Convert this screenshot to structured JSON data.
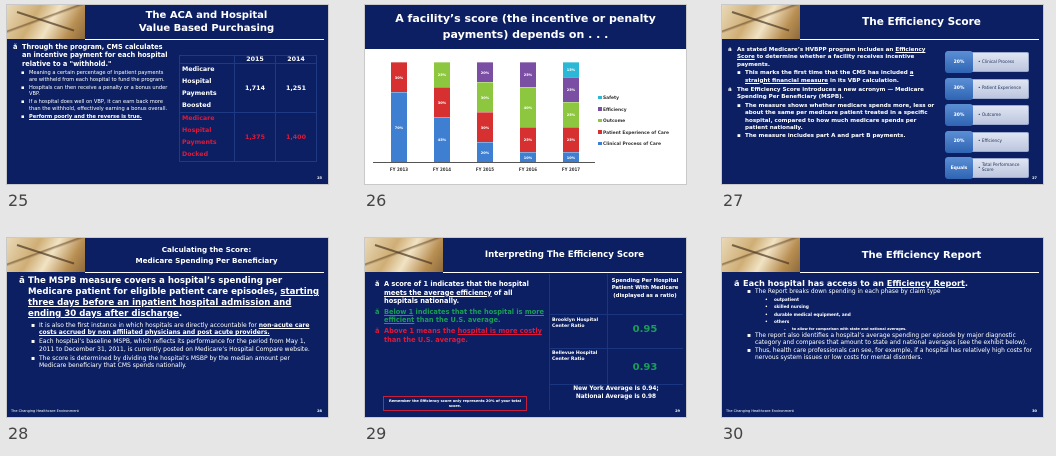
{
  "slides": [
    {
      "number": "25",
      "title_line1": "The ACA and Hospital",
      "title_line2": "Value Based Purchasing",
      "main_bullet": "Through the program, CMS calculates an incentive payment for each hospital relative to a \"withhold.\"",
      "sub_bullets": [
        "Meaning a certain percentage of inpatient payments are withheld from each hospital to fund the program.",
        "Hospitals can then receive a penalty or a bonus under VBP.",
        "If a hospital does well on VBP, it can earn back more than the withhold, effectively earning a bonus overall.",
        "Perform poorly and the reverse is true."
      ],
      "table": {
        "headers": [
          "",
          "2015",
          "2014"
        ],
        "rows": [
          {
            "label_lines": [
              "Medicare",
              "Hospital",
              "Payments",
              "Boosted"
            ],
            "values": [
              "1,714",
              "1,251"
            ],
            "color": "#ffffff"
          },
          {
            "label_lines": [
              "Medicare",
              "Hospital",
              "Payments",
              "Docked"
            ],
            "values": [
              "1,375",
              "1,400"
            ],
            "color": "#e31837"
          }
        ]
      },
      "slide_no": "25"
    },
    {
      "number": "26",
      "title": "A facility’s score (the incentive or penalty payments) depends on  . . .",
      "legend": [
        "Safety",
        "Efficiency",
        "Outcome",
        "Patient Experience of Care",
        "Clinical Process of Care"
      ]
    },
    {
      "number": "27",
      "title": "The Efficiency Score",
      "bullet1_pre": "As stated Medicare’s HVBPP program includes an ",
      "bullet1_link": "Efficiency Score",
      "bullet1_post": " to determine whether a facility receives incentive payments.",
      "bullet1_sub_pre": "This marks the first time that the CMS has included ",
      "bullet1_sub_link": "a straight financial measure",
      "bullet1_sub_post": " in its VBP calculation.",
      "bullet2": "The Efficiency Score introduces a new acronym — Medicare Spending Per Beneficiary (MSPB).",
      "bullet2_subs": [
        "The measure shows whether medicare spends more, less or about the same per medicare patient treated in a specific hospital, compared to how much medicare spends per patient nationally.",
        "The measure includes part A and part B payments."
      ],
      "boxes": [
        {
          "pct": "20%",
          "label": "Clinical Process"
        },
        {
          "pct": "30%",
          "label": "Patient Experience"
        },
        {
          "pct": "30%",
          "label": "Outcome"
        },
        {
          "pct": "20%",
          "label": "Efficiency"
        },
        {
          "pct": "Equals",
          "label": "Total Performance Score"
        }
      ],
      "slide_no": "27"
    },
    {
      "number": "28",
      "title_line1": "Calculating the Score:",
      "title_line2": "Medicare Spending Per Beneficiary",
      "main_pre": "The MSPB measure covers a hospital’s spending per Medicare patient for eligible patient care episodes, ",
      "main_link": "starting three days before an inpatient hospital admission and ending 30 days after discharge",
      "main_post": ".",
      "sub1_pre": "It is also the first instance in which hospitals are directly accountable for ",
      "sub1_link": "non-acute care costs accrued by non affiliated physicians and post acute providers.",
      "sub2": "Each hospital’s baseline MSPB, which reflects its performance for the period from May 1, 2011 to December 31, 2011, is currently posted on Medicare’s Hospital Compare website.",
      "sub3": "The score is determined by dividing the hospital’s MSBP by the median amount per Medicare beneficiary that CMS spends nationally.",
      "footer": "The Changing Healthcare Environment",
      "slide_no": "28"
    },
    {
      "number": "29",
      "title": "Interpreting The Efficiency Score",
      "b1_pre": "A score of 1 indicates that the hospital ",
      "b1_link": "meets the average efficiency",
      "b1_post": " of all hospitals nationally.",
      "b2_link1": "Below 1",
      "b2_mid": " indicates that the hospital is ",
      "b2_link2": "more efficient",
      "b2_post": " than the U.S. average.",
      "b3_pre": "Above 1 means the ",
      "b3_link": "hospital is more costly",
      "b3_post": " than the U.S. average.",
      "note": "Remember the Efficiency score only represents 20% of your total score.",
      "table_header": "Spending Per Hospital Patient With Medicare (displayed as a ratio)",
      "rows": [
        {
          "label": "Brooklyn Hospital Center Ratio",
          "value": "0.95"
        },
        {
          "label": "Bellevue Hospital Center Ratio",
          "value": "0.93"
        }
      ],
      "footer_line1": "New York Average is 0.94;",
      "footer_line2": "National Average is 0.98",
      "slide_no": "29"
    },
    {
      "number": "30",
      "title": "The Efficiency Report",
      "main_pre": "Each hospital has access to an ",
      "main_link": "Efficiency Report",
      "main_post": ".",
      "sub1": "The Report breaks down spending in each phase by claim type",
      "claim_types": [
        "outpatient",
        "skilled nursing",
        "durable medical equipment, and",
        "others"
      ],
      "claim_note": "to allow for comparison with state and national averages.",
      "sub2": "The report also identifies a hospital’s average spending per episode by major diagnostic category and compares that amount to state and national averages (see the exhibit below).",
      "sub3": "Thus, health care professionals can see, for example, if a hospital has relatively high costs for nervous system issues or low costs for mental disorders.",
      "footer": "The Changing Healthcare Environment",
      "slide_no": "30"
    }
  ],
  "colors": {
    "slide_bg": "#0b1f62",
    "red": "#e31837",
    "green": "#1a9e57",
    "clinical": "#3e7fd1",
    "patient": "#d63031",
    "outcome": "#8dc63f",
    "efficiency": "#7a4ea3",
    "safety": "#2bb8d6"
  },
  "chart_data": {
    "type": "bar",
    "stacked": true,
    "title": "A facility’s score (the incentive or penalty payments) depends on  . . .",
    "categories": [
      "FY 2013",
      "FY 2014",
      "FY 2015",
      "FY 2016",
      "FY 2017"
    ],
    "series": [
      {
        "name": "Clinical Process of Care",
        "values": [
          70,
          45,
          20,
          10,
          10
        ],
        "color": "#3e7fd1"
      },
      {
        "name": "Patient Experience of Care",
        "values": [
          30,
          30,
          30,
          25,
          25
        ],
        "color": "#d63031"
      },
      {
        "name": "Outcome",
        "values": [
          0,
          25,
          30,
          40,
          25
        ],
        "color": "#8dc63f"
      },
      {
        "name": "Efficiency",
        "values": [
          0,
          0,
          20,
          25,
          25
        ],
        "color": "#7a4ea3"
      },
      {
        "name": "Safety",
        "values": [
          0,
          0,
          0,
          0,
          15
        ],
        "color": "#2bb8d6"
      }
    ],
    "xlabel": "",
    "ylabel": "",
    "ylim": [
      0,
      100
    ],
    "grid": false,
    "legend_position": "right",
    "legend_order": [
      "Safety",
      "Efficiency",
      "Outcome",
      "Patient Experience of Care",
      "Clinical Process of Care"
    ]
  }
}
